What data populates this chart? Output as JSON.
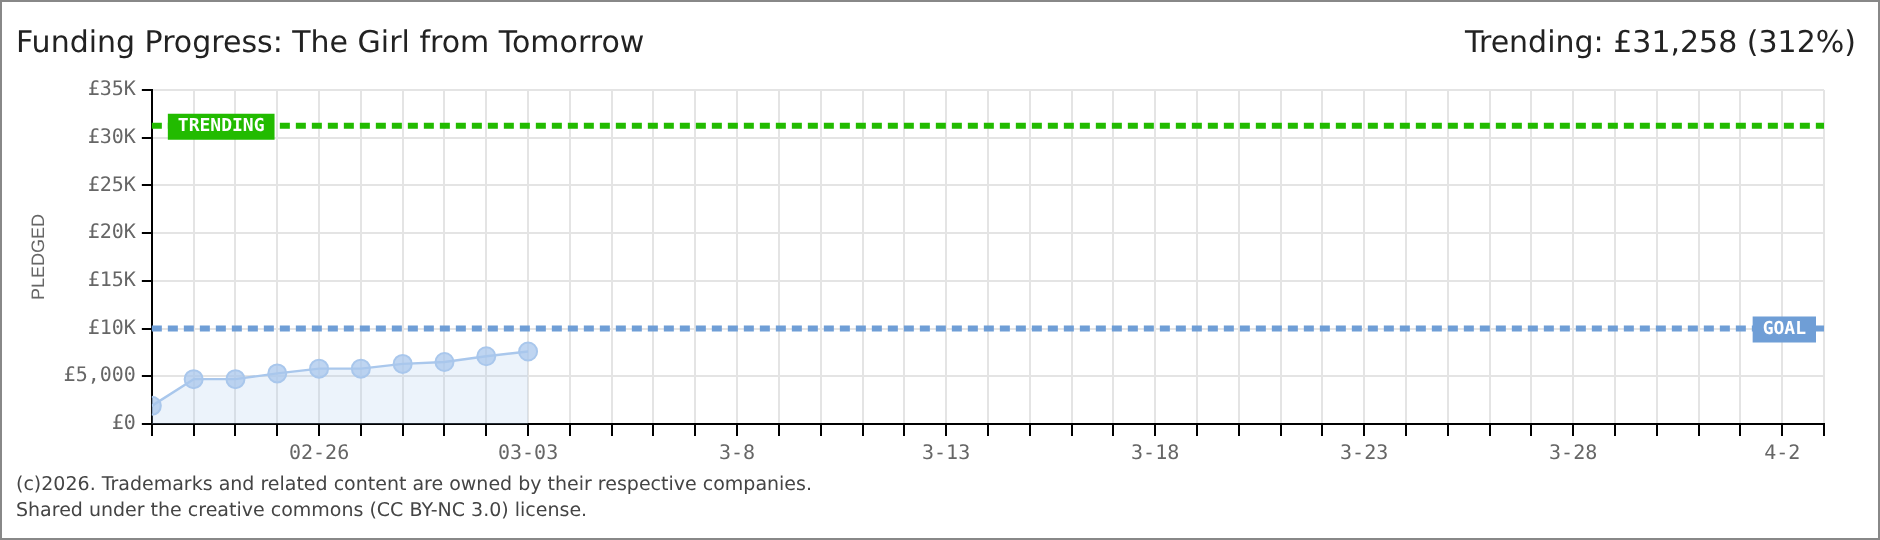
{
  "chart_data": {
    "type": "area",
    "title": "Funding Progress: The Girl from Tomorrow",
    "subtitle": "Trending:  £31,258 (312%)",
    "ylabel": "PLEDGED",
    "x": [
      "2026-02-22",
      "2026-02-23",
      "2026-02-24",
      "2026-02-25",
      "2026-02-26",
      "2026-02-27",
      "2026-02-28",
      "2026-03-01",
      "2026-03-02",
      "2026-03-03"
    ],
    "series": [
      {
        "color": "#a9c7ec",
        "values": [
          1900,
          4700,
          4700,
          5300,
          5800,
          5800,
          6300,
          6500,
          7100,
          7600
        ]
      }
    ],
    "marker": "circle",
    "grid": true,
    "xlim": [
      "2026-02-22",
      "2026-04-03"
    ],
    "xticks": [
      {
        "value": "2026-02-22",
        "label": null
      },
      {
        "value": "2026-02-23",
        "label": null
      },
      {
        "value": "2026-02-24",
        "label": null
      },
      {
        "value": "2026-02-25",
        "label": null
      },
      {
        "value": "2026-02-26",
        "label": "02-26"
      },
      {
        "value": "2026-02-27",
        "label": null
      },
      {
        "value": "2026-02-28",
        "label": null
      },
      {
        "value": "2026-03-01",
        "label": null
      },
      {
        "value": "2026-03-02",
        "label": null
      },
      {
        "value": "2026-03-03",
        "label": "03-03"
      },
      {
        "value": "2026-03-04",
        "label": null
      },
      {
        "value": "2026-03-05",
        "label": null
      },
      {
        "value": "2026-03-06",
        "label": null
      },
      {
        "value": "2026-03-07",
        "label": null
      },
      {
        "value": "2026-03-08",
        "label": "3-8"
      },
      {
        "value": "2026-03-09",
        "label": null
      },
      {
        "value": "2026-03-10",
        "label": null
      },
      {
        "value": "2026-03-11",
        "label": null
      },
      {
        "value": "2026-03-12",
        "label": null
      },
      {
        "value": "2026-03-13",
        "label": "3-13"
      },
      {
        "value": "2026-03-14",
        "label": null
      },
      {
        "value": "2026-03-15",
        "label": null
      },
      {
        "value": "2026-03-16",
        "label": null
      },
      {
        "value": "2026-03-17",
        "label": null
      },
      {
        "value": "2026-03-18",
        "label": "3-18"
      },
      {
        "value": "2026-03-19",
        "label": null
      },
      {
        "value": "2026-03-20",
        "label": null
      },
      {
        "value": "2026-03-21",
        "label": null
      },
      {
        "value": "2026-03-22",
        "label": null
      },
      {
        "value": "2026-03-23",
        "label": "3-23"
      },
      {
        "value": "2026-03-24",
        "label": null
      },
      {
        "value": "2026-03-25",
        "label": null
      },
      {
        "value": "2026-03-26",
        "label": null
      },
      {
        "value": "2026-03-27",
        "label": null
      },
      {
        "value": "2026-03-28",
        "label": "3-28"
      },
      {
        "value": "2026-03-29",
        "label": null
      },
      {
        "value": "2026-03-30",
        "label": null
      },
      {
        "value": "2026-03-31",
        "label": null
      },
      {
        "value": "2026-04-01",
        "label": null
      },
      {
        "value": "2026-04-02",
        "label": "4-2"
      },
      {
        "value": "2026-04-03",
        "label": null
      }
    ],
    "ylim": [
      0,
      35000
    ],
    "yticks": [
      {
        "value": 0,
        "label": "£0"
      },
      {
        "value": 5000,
        "label": "£5,000"
      },
      {
        "value": 10000,
        "label": "£10K"
      },
      {
        "value": 15000,
        "label": "£15K"
      },
      {
        "value": 20000,
        "label": "£20K"
      },
      {
        "value": 25000,
        "label": "£25K"
      },
      {
        "value": 30000,
        "label": "£30K"
      },
      {
        "value": 35000,
        "label": "£35K"
      }
    ],
    "ref_lines": [
      {
        "axis": "y",
        "value": 31258,
        "label": "TRENDING",
        "color": "#22bb00",
        "line_style": "dashed"
      },
      {
        "axis": "y",
        "value": 10000,
        "label": "GOAL",
        "color": "#6f9ed6",
        "line_style": "dashed"
      }
    ],
    "annotations": [
      "(c)2026. Trademarks and related content are owned by their respective companies.",
      "Shared under the creative commons (CC BY-NC 3.0) license."
    ]
  }
}
